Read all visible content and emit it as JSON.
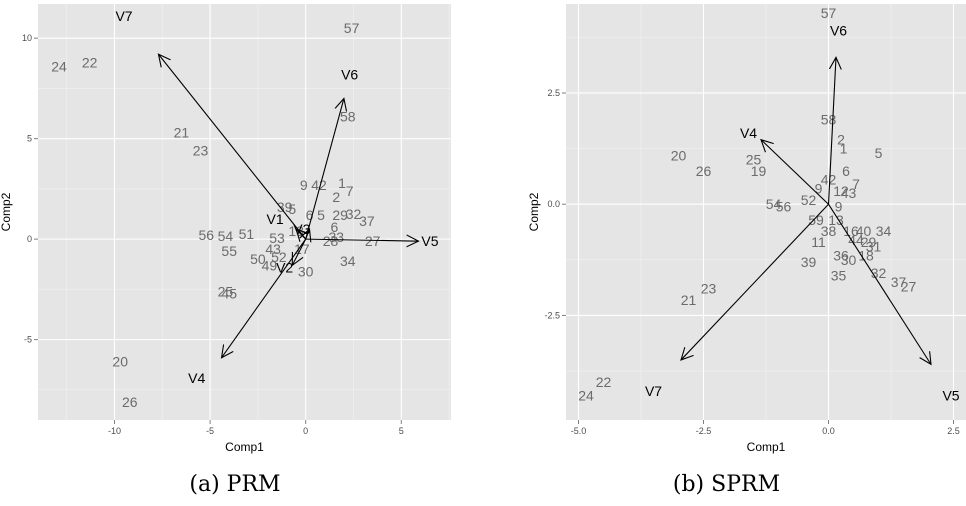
{
  "chart_data": [
    {
      "type": "scatter",
      "caption": "(a) PRM",
      "xlabel": "Comp1",
      "ylabel": "Comp2",
      "xlim": [
        -14,
        7.6
      ],
      "ylim": [
        -9,
        11.7
      ],
      "xticks": [
        -10,
        -5,
        0,
        5
      ],
      "xtick_labels": [
        "-10",
        "-5",
        "0",
        "5"
      ],
      "yticks": [
        -5,
        0,
        5,
        10
      ],
      "ytick_labels": [
        "-5",
        "0",
        "5",
        "10"
      ],
      "grid": true,
      "points": [
        {
          "label": "57",
          "x": 2.4,
          "y": 10.5
        },
        {
          "label": "24",
          "x": -12.9,
          "y": 8.6
        },
        {
          "label": "22",
          "x": -11.3,
          "y": 8.8
        },
        {
          "label": "58",
          "x": 2.2,
          "y": 6.1
        },
        {
          "label": "21",
          "x": -6.5,
          "y": 5.3
        },
        {
          "label": "23",
          "x": -5.5,
          "y": 4.4
        },
        {
          "label": "9",
          "x": -0.1,
          "y": 2.7
        },
        {
          "label": "42",
          "x": 0.7,
          "y": 2.7
        },
        {
          "label": "1",
          "x": 1.9,
          "y": 2.8
        },
        {
          "label": "7",
          "x": 2.3,
          "y": 2.4
        },
        {
          "label": "2",
          "x": 1.6,
          "y": 2.1
        },
        {
          "label": "39",
          "x": -1.1,
          "y": 1.6
        },
        {
          "label": "5",
          "x": -0.7,
          "y": 1.5
        },
        {
          "label": "6",
          "x": 0.2,
          "y": 1.2
        },
        {
          "label": "5",
          "x": 0.8,
          "y": 1.2
        },
        {
          "label": "29",
          "x": 1.8,
          "y": 1.2
        },
        {
          "label": "32",
          "x": 2.5,
          "y": 1.25
        },
        {
          "label": "6",
          "x": 1.5,
          "y": 0.6
        },
        {
          "label": "37",
          "x": 3.2,
          "y": 0.9
        },
        {
          "label": "13",
          "x": -0.5,
          "y": 0.4
        },
        {
          "label": "53",
          "x": -1.5,
          "y": 0.05
        },
        {
          "label": "28",
          "x": 1.3,
          "y": -0.1
        },
        {
          "label": "33",
          "x": 1.6,
          "y": 0.1
        },
        {
          "label": "56",
          "x": -5.2,
          "y": 0.2
        },
        {
          "label": "54",
          "x": -4.2,
          "y": 0.15
        },
        {
          "label": "51",
          "x": -3.1,
          "y": 0.25
        },
        {
          "label": "27",
          "x": 3.5,
          "y": -0.1
        },
        {
          "label": "55",
          "x": -4.0,
          "y": -0.6
        },
        {
          "label": "43",
          "x": -1.7,
          "y": -0.5
        },
        {
          "label": "17",
          "x": -0.2,
          "y": -0.5
        },
        {
          "label": "50",
          "x": -2.5,
          "y": -1.0
        },
        {
          "label": "52",
          "x": -1.4,
          "y": -0.9
        },
        {
          "label": "49",
          "x": -1.9,
          "y": -1.3
        },
        {
          "label": "30",
          "x": 0.0,
          "y": -1.6
        },
        {
          "label": "34",
          "x": 2.2,
          "y": -1.1
        },
        {
          "label": "25",
          "x": -4.2,
          "y": -2.6
        },
        {
          "label": "45",
          "x": -4.0,
          "y": -2.7
        },
        {
          "label": "20",
          "x": -9.7,
          "y": -6.1
        },
        {
          "label": "26",
          "x": -9.2,
          "y": -8.1
        }
      ],
      "arrows": [
        {
          "label": "V7",
          "x": -7.7,
          "y": 9.2,
          "label_x": -9.5,
          "label_y": 11.1
        },
        {
          "label": "V6",
          "x": 2.0,
          "y": 7.0,
          "label_x": 2.3,
          "label_y": 8.2
        },
        {
          "label": "V5",
          "x": 5.9,
          "y": -0.1,
          "label_x": 6.5,
          "label_y": -0.1
        },
        {
          "label": "V4",
          "x": -4.4,
          "y": -5.9,
          "label_x": -5.7,
          "label_y": -6.9
        },
        {
          "label": "V1",
          "x": -0.5,
          "y": 0.5,
          "label_x": -1.6,
          "label_y": 1.0
        },
        {
          "label": "V2",
          "x": -0.7,
          "y": -1.3,
          "label_x": -1.1,
          "label_y": -1.4
        },
        {
          "label": "V3",
          "x": 0.2,
          "y": 0.5,
          "label_x": -0.2,
          "label_y": 0.5
        }
      ]
    },
    {
      "type": "scatter",
      "caption": "(b) SPRM",
      "xlabel": "Comp1",
      "ylabel": "Comp2",
      "xlim": [
        -5.25,
        2.75
      ],
      "ylim": [
        -4.85,
        4.5
      ],
      "xticks": [
        -5.0,
        -2.5,
        0.0,
        2.5
      ],
      "xtick_labels": [
        "-5.0",
        "-2.5",
        "0.0",
        "2.5"
      ],
      "yticks": [
        -2.5,
        0.0,
        2.5
      ],
      "ytick_labels": [
        "-2.5",
        "0.0",
        "2.5"
      ],
      "grid": true,
      "points": [
        {
          "label": "57",
          "x": 0.0,
          "y": 4.3
        },
        {
          "label": "58",
          "x": 0.0,
          "y": 1.9
        },
        {
          "label": "2",
          "x": 0.25,
          "y": 1.45
        },
        {
          "label": "1",
          "x": 0.3,
          "y": 1.25
        },
        {
          "label": "5",
          "x": 1.0,
          "y": 1.15
        },
        {
          "label": "20",
          "x": -3.0,
          "y": 1.1
        },
        {
          "label": "26",
          "x": -2.5,
          "y": 0.75
        },
        {
          "label": "25",
          "x": -1.5,
          "y": 1.0
        },
        {
          "label": "19",
          "x": -1.4,
          "y": 0.75
        },
        {
          "label": "6",
          "x": 0.35,
          "y": 0.75
        },
        {
          "label": "7",
          "x": 0.55,
          "y": 0.45
        },
        {
          "label": "42",
          "x": 0.0,
          "y": 0.55
        },
        {
          "label": "9",
          "x": -0.2,
          "y": 0.35
        },
        {
          "label": "12",
          "x": 0.25,
          "y": 0.3
        },
        {
          "label": "43",
          "x": 0.4,
          "y": 0.25
        },
        {
          "label": "54",
          "x": -1.1,
          "y": 0.0
        },
        {
          "label": "56",
          "x": -0.9,
          "y": -0.05
        },
        {
          "label": "52",
          "x": -0.4,
          "y": 0.1
        },
        {
          "label": "9",
          "x": 0.2,
          "y": -0.05
        },
        {
          "label": "59",
          "x": -0.25,
          "y": -0.35
        },
        {
          "label": "13",
          "x": 0.15,
          "y": -0.35
        },
        {
          "label": "38",
          "x": 0.0,
          "y": -0.6
        },
        {
          "label": "16",
          "x": 0.45,
          "y": -0.6
        },
        {
          "label": "40",
          "x": 0.7,
          "y": -0.6
        },
        {
          "label": "34",
          "x": 1.1,
          "y": -0.6
        },
        {
          "label": "11",
          "x": -0.2,
          "y": -0.85
        },
        {
          "label": "44",
          "x": 0.55,
          "y": -0.8
        },
        {
          "label": "29",
          "x": 0.8,
          "y": -0.85
        },
        {
          "label": "31",
          "x": 0.9,
          "y": -0.95
        },
        {
          "label": "18",
          "x": 0.75,
          "y": -1.15
        },
        {
          "label": "36",
          "x": 0.25,
          "y": -1.15
        },
        {
          "label": "30",
          "x": 0.4,
          "y": -1.25
        },
        {
          "label": "39",
          "x": -0.4,
          "y": -1.3
        },
        {
          "label": "35",
          "x": 0.2,
          "y": -1.6
        },
        {
          "label": "32",
          "x": 1.0,
          "y": -1.55
        },
        {
          "label": "37",
          "x": 1.4,
          "y": -1.75
        },
        {
          "label": "27",
          "x": 1.6,
          "y": -1.85
        },
        {
          "label": "23",
          "x": -2.4,
          "y": -1.9
        },
        {
          "label": "21",
          "x": -2.8,
          "y": -2.15
        },
        {
          "label": "22",
          "x": -4.5,
          "y": -4.0
        },
        {
          "label": "24",
          "x": -4.85,
          "y": -4.3
        }
      ],
      "arrows": [
        {
          "label": "V6",
          "x": 0.15,
          "y": 3.3,
          "label_x": 0.2,
          "label_y": 3.9
        },
        {
          "label": "V4",
          "x": -1.35,
          "y": 1.45,
          "label_x": -1.6,
          "label_y": 1.6
        },
        {
          "label": "V7",
          "x": -2.95,
          "y": -3.5,
          "label_x": -3.5,
          "label_y": -4.2
        },
        {
          "label": "V5",
          "x": 2.05,
          "y": -3.6,
          "label_x": 2.45,
          "label_y": -4.3
        }
      ]
    }
  ]
}
